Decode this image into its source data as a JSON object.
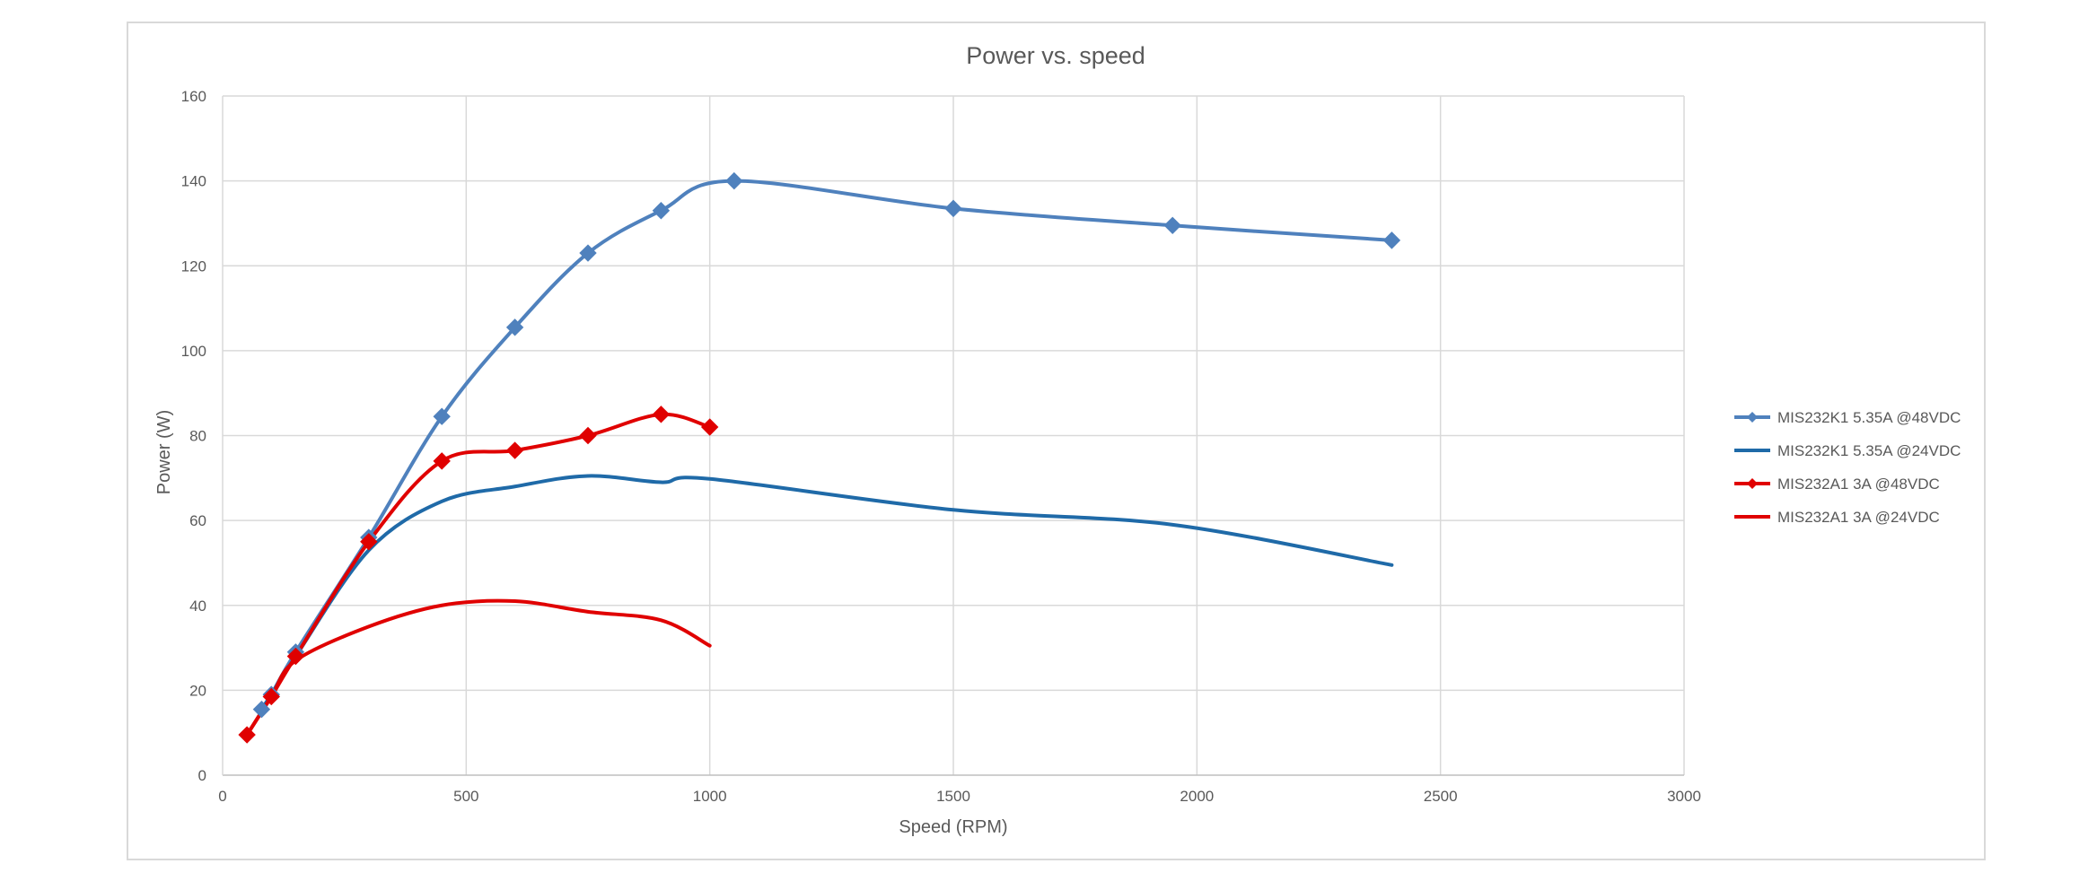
{
  "chart_data": {
    "type": "line",
    "title": "Power vs. speed",
    "xlabel": "Speed (RPM)",
    "ylabel": "Power (W)",
    "xlim": [
      0,
      3000
    ],
    "ylim": [
      0,
      160
    ],
    "xticks": [
      0,
      500,
      1000,
      1500,
      2000,
      2500,
      3000
    ],
    "yticks": [
      0,
      20,
      40,
      60,
      80,
      100,
      120,
      140,
      160
    ],
    "grid": true,
    "legend_position": "right",
    "series": [
      {
        "name": "MIS232K1 5.35A @48VDC",
        "color": "#4f81bd",
        "markers": true,
        "x": [
          80,
          100,
          150,
          300,
          450,
          600,
          750,
          900,
          1050,
          1500,
          1950,
          2400
        ],
        "y": [
          15.5,
          19,
          29,
          56,
          84.5,
          105.5,
          123,
          133,
          140,
          133.5,
          129.5,
          126
        ]
      },
      {
        "name": "MIS232K1 5.35A @24VDC",
        "color": "#1f6aa8",
        "markers": false,
        "x": [
          80,
          100,
          150,
          300,
          450,
          600,
          750,
          900,
          1000,
          1500,
          1950,
          2400
        ],
        "y": [
          15.5,
          19,
          28,
          53,
          64.5,
          68,
          70.5,
          69,
          69.8,
          62.5,
          59,
          49.5
        ]
      },
      {
        "name": "MIS232A1 3A @48VDC",
        "color": "#e00000",
        "markers": true,
        "x": [
          50,
          100,
          150,
          300,
          450,
          600,
          750,
          900,
          1000
        ],
        "y": [
          9.5,
          18.5,
          28,
          55,
          74,
          76.5,
          80,
          85,
          82
        ]
      },
      {
        "name": "MIS232A1 3A @24VDC",
        "color": "#e00000",
        "markers": false,
        "x": [
          50,
          100,
          150,
          300,
          450,
          600,
          750,
          900,
          1000
        ],
        "y": [
          9.5,
          18.5,
          27,
          35,
          40,
          41,
          38.5,
          36.5,
          30.5
        ]
      }
    ]
  }
}
